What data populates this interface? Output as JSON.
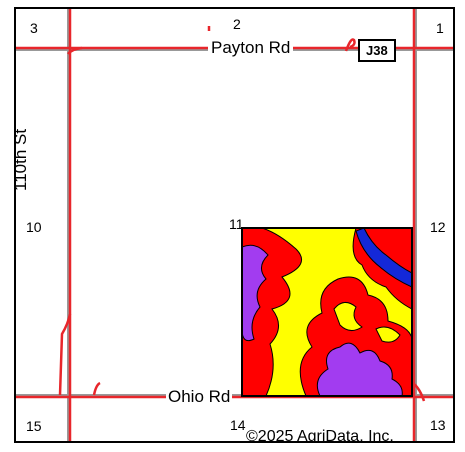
{
  "map": {
    "sections": {
      "s3": "3",
      "s2": "2",
      "s1": "1",
      "s10": "10",
      "s11": "11",
      "s12": "12",
      "s15": "15",
      "s14": "14",
      "s13": "13"
    },
    "roads": {
      "payton": "Payton Rd",
      "ohio": "Ohio Rd",
      "street110": "110th St"
    },
    "shield": "J38",
    "copyright": "©2025 AgriData, Inc.",
    "colors": {
      "road": "#e8262b",
      "section_line": "#999999",
      "soil_yellow": "#ffff00",
      "soil_red": "#ff0000",
      "soil_purple": "#a23cf0",
      "soil_blue": "#1428d8"
    }
  }
}
